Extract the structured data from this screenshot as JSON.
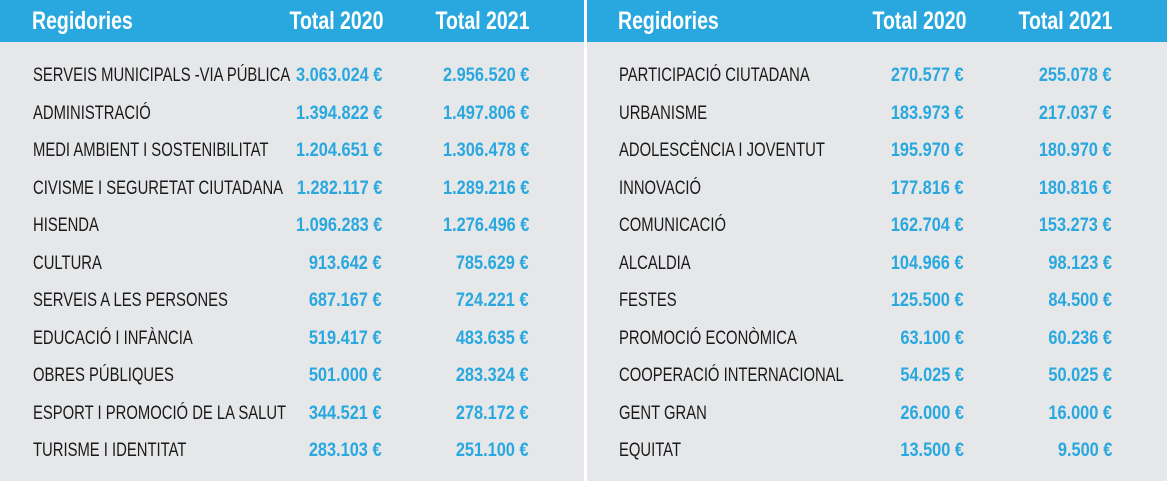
{
  "header": {
    "name_label": "Regidories",
    "col_2020": "Total 2020",
    "col_2021": "Total 2021"
  },
  "colors": {
    "accent": "#29a8e0",
    "panel_bg": "#e6e7e9",
    "text": "#1a1a1a"
  },
  "left_table": {
    "rows": [
      {
        "name": "SERVEIS MUNICIPALS -VIA PÚBLICA",
        "total_2020": "3.063.024 €",
        "total_2021": "2.956.520 €"
      },
      {
        "name": "ADMINISTRACIÓ",
        "total_2020": "1.394.822 €",
        "total_2021": "1.497.806 €"
      },
      {
        "name": "MEDI  AMBIENT  I  SOSTENIBILITAT",
        "total_2020": "1.204.651 €",
        "total_2021": "1.306.478 €"
      },
      {
        "name": "CIVISME I SEGURETAT CIUTADANA",
        "total_2020": "1.282.117 €",
        "total_2021": "1.289.216 €"
      },
      {
        "name": "HISENDA",
        "total_2020": "1.096.283 €",
        "total_2021": "1.276.496 €"
      },
      {
        "name": "CULTURA",
        "total_2020": "913.642 €",
        "total_2021": "785.629 €"
      },
      {
        "name": "SERVEIS A LES PERSONES",
        "total_2020": "687.167 €",
        "total_2021": "724.221 €"
      },
      {
        "name": "EDUCACIÓ I INFÀNCIA",
        "total_2020": "519.417 €",
        "total_2021": "483.635 €"
      },
      {
        "name": "OBRES PÚBLIQUES",
        "total_2020": "501.000 €",
        "total_2021": "283.324 €"
      },
      {
        "name": "ESPORT I PROMOCIÓ DE LA SALUT",
        "total_2020": "344.521 €",
        "total_2021": "278.172 €"
      },
      {
        "name": "TURISME I IDENTITAT",
        "total_2020": "283.103 €",
        "total_2021": "251.100 €"
      }
    ]
  },
  "right_table": {
    "rows": [
      {
        "name": "PARTICIPACIÓ CIUTADANA",
        "total_2020": "270.577 €",
        "total_2021": "255.078 €"
      },
      {
        "name": "URBANISME",
        "total_2020": "183.973 €",
        "total_2021": "217.037 €"
      },
      {
        "name": "ADOLESCÈNCIA I JOVENTUT",
        "total_2020": "195.970 €",
        "total_2021": "180.970 €"
      },
      {
        "name": "INNOVACIÓ",
        "total_2020": "177.816 €",
        "total_2021": "180.816 €"
      },
      {
        "name": "COMUNICACIÓ",
        "total_2020": "162.704 €",
        "total_2021": "153.273 €"
      },
      {
        "name": "ALCALDIA",
        "total_2020": "104.966 €",
        "total_2021": "98.123 €"
      },
      {
        "name": "FESTES",
        "total_2020": "125.500 €",
        "total_2021": "84.500 €"
      },
      {
        "name": "PROMOCIÓ ECONÒMICA",
        "total_2020": "63.100 €",
        "total_2021": "60.236 €"
      },
      {
        "name": "COOPERACIÓ INTERNACIONAL",
        "total_2020": "54.025 €",
        "total_2021": "50.025 €"
      },
      {
        "name": "GENT GRAN",
        "total_2020": "26.000 €",
        "total_2021": "16.000 €"
      },
      {
        "name": "EQUITAT",
        "total_2020": "13.500 €",
        "total_2021": "9.500 €"
      }
    ]
  }
}
